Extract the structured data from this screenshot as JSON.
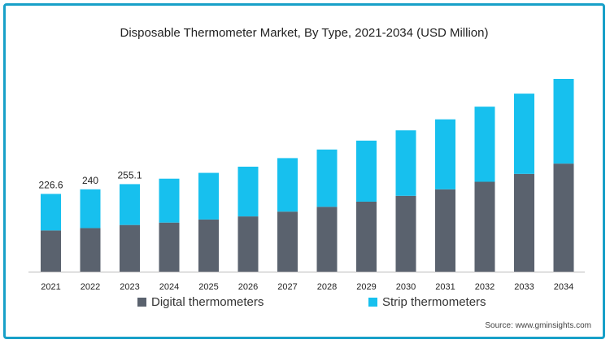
{
  "chart_data": {
    "type": "bar",
    "stacked": true,
    "title": "Disposable Thermometer Market, By Type, 2021-2034 (USD Million)",
    "categories": [
      "2021",
      "2022",
      "2023",
      "2024",
      "2025",
      "2026",
      "2027",
      "2028",
      "2029",
      "2030",
      "2031",
      "2032",
      "2033",
      "2034"
    ],
    "series": [
      {
        "name": "Digital thermometers",
        "color": "#5a626e",
        "values": [
          120,
          127,
          136,
          143,
          152,
          161,
          175,
          189,
          204,
          221,
          240,
          262,
          285,
          315
        ]
      },
      {
        "name": "Strip thermometers",
        "color": "#17c0ee",
        "values": [
          106.6,
          113,
          119.1,
          128,
          136,
          145,
          156,
          167,
          178,
          191,
          204,
          219,
          234,
          247
        ]
      }
    ],
    "data_labels": [
      {
        "category": "2021",
        "text": "226.6"
      },
      {
        "category": "2022",
        "text": "240"
      },
      {
        "category": "2023",
        "text": "255.1"
      }
    ],
    "xlabel": "",
    "ylabel": "",
    "ylim": [
      0,
      562
    ],
    "grid": false,
    "legend_position": "bottom"
  },
  "source_text": "Source: www.gminsights.com"
}
